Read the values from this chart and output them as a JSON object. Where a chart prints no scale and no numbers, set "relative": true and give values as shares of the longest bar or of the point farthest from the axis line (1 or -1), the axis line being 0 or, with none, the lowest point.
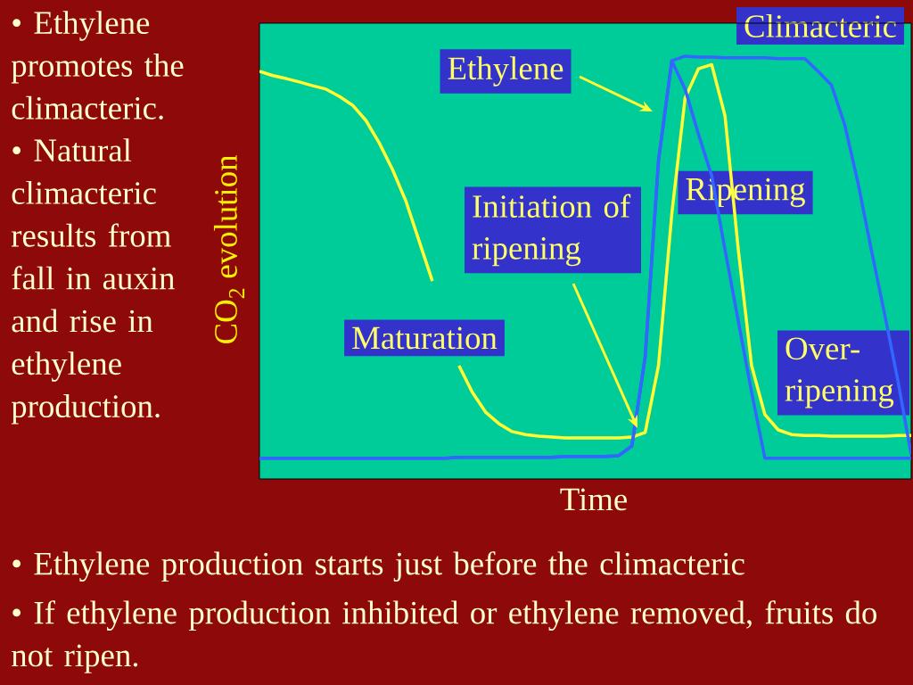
{
  "chart_data": {
    "type": "line",
    "relative": true,
    "xlabel": "Time",
    "ylabel": "CO$_{2}$ evolution",
    "categories": [
      null,
      null,
      null,
      null,
      null,
      null,
      null,
      null,
      null,
      null,
      null,
      null,
      null,
      null,
      null,
      null,
      null,
      null,
      null,
      null,
      null,
      null,
      null,
      null,
      null,
      null,
      null,
      null,
      null,
      null,
      null,
      null,
      null,
      null,
      null,
      null,
      null,
      null,
      null,
      null,
      null,
      null,
      null,
      null,
      null,
      null,
      null,
      null,
      null,
      null
    ],
    "series": [
      {
        "color": "#ffff33",
        "values": [
          0.964,
          0.954,
          0.947,
          0.939,
          0.93,
          0.922,
          0.905,
          0.884,
          0.848,
          0.795,
          0.732,
          0.658,
          0.563,
          0.468,
          null,
          0.268,
          0.205,
          0.158,
          0.131,
          0.112,
          0.105,
          0.101,
          0.099,
          0.097,
          0.097,
          0.097,
          0.097,
          0.097,
          0.099,
          0.11,
          0.268,
          0.627,
          0.901,
          0.97,
          0.98,
          0.859,
          0.542,
          0.268,
          0.152,
          0.116,
          0.105,
          0.103,
          0.103,
          0.101,
          0.101,
          0.101,
          0.101,
          0.101,
          0.103,
          0.103
        ]
      },
      {
        "color": "#3366ff",
        "values": [
          0.049,
          0.049,
          0.049,
          0.049,
          0.049,
          0.049,
          0.049,
          0.049,
          0.049,
          0.049,
          0.049,
          0.049,
          0.049,
          0.049,
          0.049,
          0.051,
          0.051,
          0.051,
          0.051,
          0.051,
          0.051,
          0.051,
          0.051,
          0.053,
          0.053,
          0.053,
          0.053,
          0.055,
          0.078,
          0.289,
          0.753,
          0.989,
          0.922,
          0.816,
          0.717,
          0.542,
          0.373,
          0.205,
          0.049,
          0.049,
          0.049,
          0.049,
          0.049,
          0.049,
          0.049,
          0.049,
          0.049,
          0.049,
          0.049,
          0.049
        ]
      },
      {
        "color": "#3366ff",
        "values": [
          0.049,
          0.049,
          0.049,
          0.049,
          0.049,
          0.049,
          0.049,
          0.049,
          0.049,
          0.049,
          0.049,
          0.049,
          0.049,
          0.049,
          0.049,
          0.051,
          0.051,
          0.051,
          0.051,
          0.051,
          0.051,
          0.051,
          0.051,
          0.053,
          0.053,
          0.053,
          0.053,
          0.055,
          0.078,
          0.289,
          0.753,
          0.989,
          1.0,
          0.998,
          0.998,
          0.996,
          0.996,
          0.996,
          0.996,
          0.994,
          0.994,
          0.994,
          0.964,
          0.932,
          0.838,
          0.7,
          0.542,
          0.39,
          0.232,
          0.057
        ]
      }
    ],
    "annotations": [
      "Ethylene",
      "Initiation of ripening",
      "Ripening",
      "Maturation",
      "Over-ripening",
      "Climacteric",
      "• Ethylene promotes the climacteric.",
      "• Natural climacteric results from fall in auxin and rise in ethylene production.",
      "• Ethylene production starts just before the climacteric",
      "• If ethylene production inhibited or ethylene removed, fruits do not ripen."
    ]
  }
}
